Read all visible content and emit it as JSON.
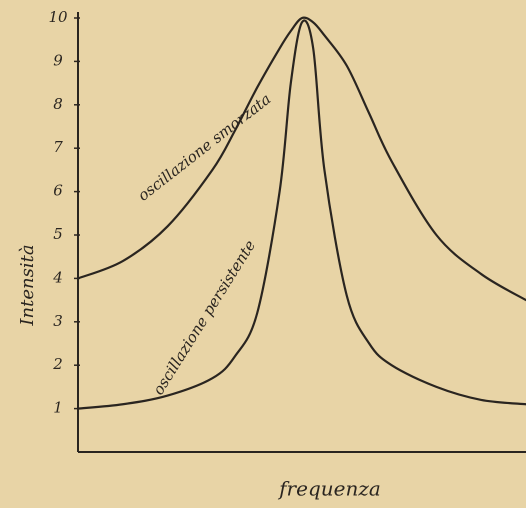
{
  "chart_data": {
    "type": "line",
    "y_label": "Intensità",
    "x_label": "frequenza",
    "x": [
      0,
      1,
      2,
      3,
      3.5,
      4,
      4.5,
      4.75,
      5,
      5.25,
      5.5,
      6,
      6.5,
      7,
      8,
      9,
      10
    ],
    "xlim": [
      0,
      10
    ],
    "ylim": [
      0,
      10
    ],
    "yticks": [
      1,
      2,
      3,
      4,
      5,
      6,
      7,
      8,
      9,
      10
    ],
    "series": [
      {
        "name": "oscillazione smorzata",
        "color": "#2a2520",
        "values": [
          4.0,
          4.4,
          5.2,
          6.5,
          7.4,
          8.4,
          9.3,
          9.7,
          10,
          9.9,
          9.6,
          8.9,
          7.8,
          6.7,
          5.0,
          4.1,
          3.5
        ]
      },
      {
        "name": "oscillazione persistente",
        "color": "#2a2520",
        "values": [
          1.0,
          1.1,
          1.3,
          1.7,
          2.2,
          3.2,
          6.0,
          8.5,
          9.9,
          9.3,
          6.5,
          3.6,
          2.5,
          2.0,
          1.5,
          1.2,
          1.1
        ]
      }
    ]
  }
}
